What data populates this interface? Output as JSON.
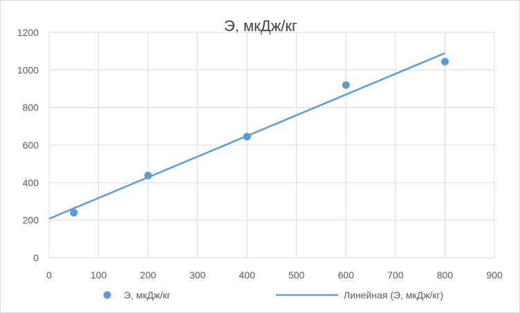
{
  "chart_data": {
    "type": "scatter",
    "title": "Э, мкДж/кг",
    "xlabel": "",
    "ylabel": "",
    "xlim": [
      0,
      900
    ],
    "ylim": [
      0,
      1200
    ],
    "x_ticks": [
      0,
      100,
      200,
      300,
      400,
      500,
      600,
      700,
      800,
      900
    ],
    "y_ticks": [
      0,
      200,
      400,
      600,
      800,
      1000,
      1200
    ],
    "grid": true,
    "legend_position": "bottom",
    "series": [
      {
        "name": "Э, мкДж/кг",
        "kind": "scatter",
        "color": "#5b9bd5",
        "points": [
          {
            "x": 50,
            "y": 240
          },
          {
            "x": 200,
            "y": 438
          },
          {
            "x": 400,
            "y": 645
          },
          {
            "x": 600,
            "y": 920
          },
          {
            "x": 800,
            "y": 1045
          }
        ]
      },
      {
        "name": "Линейная (Э, мкДж/кг)",
        "kind": "trendline",
        "color": "#5b9bd5",
        "points": [
          {
            "x": 0,
            "y": 208
          },
          {
            "x": 800,
            "y": 1090
          }
        ]
      }
    ]
  }
}
